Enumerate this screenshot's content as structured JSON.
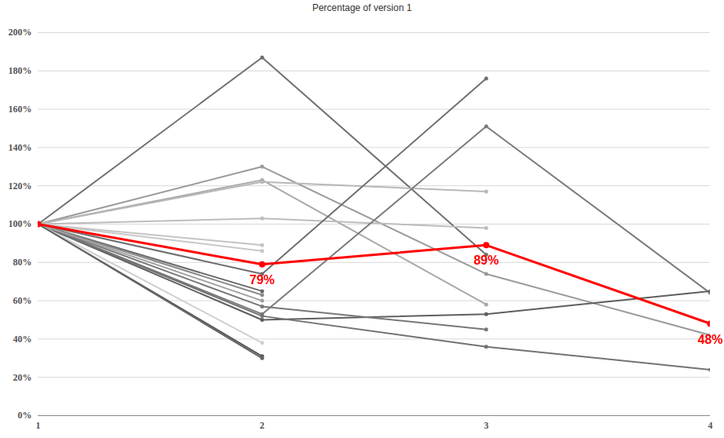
{
  "chart_data": {
    "type": "line",
    "title": "Percentage of version 1",
    "x": [
      1,
      2,
      3,
      4
    ],
    "xlim": [
      1,
      4
    ],
    "xticks": [
      1,
      2,
      3,
      4
    ],
    "ylim": [
      0,
      200
    ],
    "yticks": [
      {
        "value": 0,
        "label": "0%"
      },
      {
        "value": 20,
        "label": "20%"
      },
      {
        "value": 40,
        "label": "40%"
      },
      {
        "value": 60,
        "label": "60%"
      },
      {
        "value": 80,
        "label": "80%"
      },
      {
        "value": 100,
        "label": "100%"
      },
      {
        "value": 120,
        "label": "120%"
      },
      {
        "value": 140,
        "label": "140%"
      },
      {
        "value": 160,
        "label": "160%"
      },
      {
        "value": 180,
        "label": "180%"
      },
      {
        "value": 200,
        "label": "200%"
      }
    ],
    "grid": true,
    "series": [
      {
        "color": "#707070",
        "values": [
          100,
          187,
          84,
          null
        ]
      },
      {
        "color": "#9a9a9a",
        "values": [
          100,
          130,
          74,
          42
        ]
      },
      {
        "color": "#a8a8a8",
        "values": [
          100,
          123,
          58,
          null
        ]
      },
      {
        "color": "#b8b8b8",
        "values": [
          100,
          122,
          117,
          null
        ]
      },
      {
        "color": "#bdbdbd",
        "values": [
          100,
          103,
          98,
          null
        ]
      },
      {
        "color": "#6e6e6e",
        "values": [
          100,
          74,
          176,
          null
        ]
      },
      {
        "color": "#7a7a7a",
        "values": [
          100,
          53,
          151,
          64
        ]
      },
      {
        "color": "#5e5e5e",
        "values": [
          100,
          50,
          53,
          65
        ]
      },
      {
        "color": "#777777",
        "values": [
          100,
          57,
          45,
          null
        ]
      },
      {
        "color": "#727272",
        "values": [
          100,
          52,
          36,
          24
        ]
      },
      {
        "color": "#c4c4c4",
        "values": [
          100,
          89,
          null,
          null
        ]
      },
      {
        "color": "#c8c8c8",
        "values": [
          100,
          86,
          null,
          null
        ]
      },
      {
        "color": "#6a6a6a",
        "values": [
          100,
          65,
          null,
          null
        ]
      },
      {
        "color": "#8a8a8a",
        "values": [
          100,
          63,
          null,
          null
        ]
      },
      {
        "color": "#a0a0a0",
        "values": [
          100,
          60,
          null,
          null
        ]
      },
      {
        "color": "#d0d0d0",
        "values": [
          100,
          38,
          null,
          null
        ]
      },
      {
        "color": "#5a5a5a",
        "values": [
          100,
          31,
          null,
          null
        ]
      },
      {
        "color": "#666666",
        "values": [
          100,
          30,
          null,
          null
        ]
      },
      {
        "color": "#ff0000",
        "values": [
          100,
          79,
          89,
          48
        ],
        "data_labels": true,
        "value_labels": [
          null,
          "79%",
          "89%",
          "48%"
        ]
      }
    ]
  }
}
